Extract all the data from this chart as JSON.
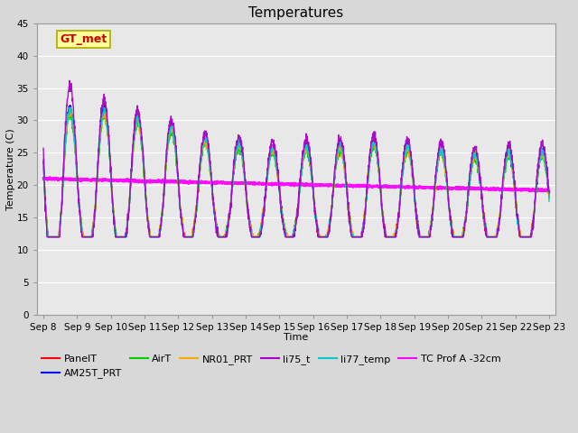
{
  "title": "Temperatures",
  "xlabel": "Time",
  "ylabel": "Temperature (C)",
  "ylim": [
    0,
    45
  ],
  "yticks": [
    0,
    5,
    10,
    15,
    20,
    25,
    30,
    35,
    40,
    45
  ],
  "n_days": 15,
  "day_start": 8,
  "series": [
    {
      "name": "PanelT",
      "color": "#ff0000",
      "lw": 1.0,
      "zorder": 5
    },
    {
      "name": "AM25T_PRT",
      "color": "#0000ff",
      "lw": 1.0,
      "zorder": 5
    },
    {
      "name": "AirT",
      "color": "#00cc00",
      "lw": 1.0,
      "zorder": 5
    },
    {
      "name": "NR01_PRT",
      "color": "#ffaa00",
      "lw": 1.0,
      "zorder": 5
    },
    {
      "name": "li75_t",
      "color": "#aa00cc",
      "lw": 1.0,
      "zorder": 6
    },
    {
      "name": "li77_temp",
      "color": "#00cccc",
      "lw": 1.0,
      "zorder": 5
    },
    {
      "name": "TC Prof A -32cm",
      "color": "#ff00ff",
      "lw": 2.0,
      "zorder": 4
    }
  ],
  "annotation_text": "GT_met",
  "annotation_fontsize": 9,
  "annotation_color": "#cc0000",
  "annotation_bg": "#ffff99",
  "annotation_border": "#aaaa00",
  "title_fontsize": 11,
  "legend_fontsize": 8,
  "tick_fontsize": 7.5,
  "fig_bg": "#d8d8d8",
  "ax_bg": "#e8e8e8"
}
